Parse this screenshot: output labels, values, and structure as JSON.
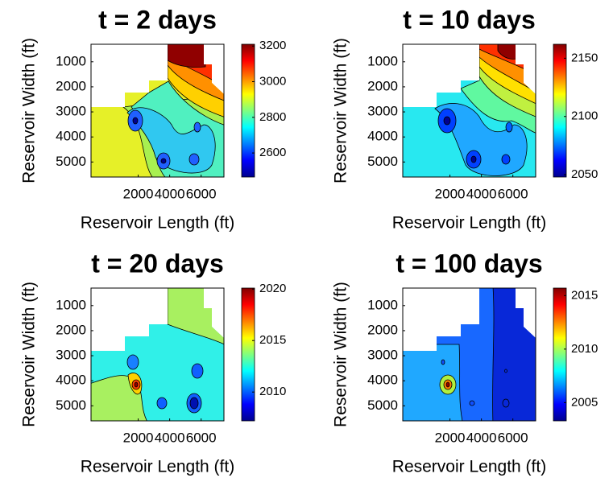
{
  "chart_data": [
    {
      "type": "contour",
      "title": "t = 2 days",
      "xlabel": "Reservoir Length (ft)",
      "ylabel": "Reservoir Width (ft)",
      "xlim": [
        -1000,
        7450
      ],
      "ylim": [
        300,
        5600
      ],
      "y_reversed": true,
      "xticks": [
        2000,
        4000,
        6000
      ],
      "yticks": [
        1000,
        2000,
        3000,
        4000,
        5000
      ],
      "colormap": "jet",
      "clim": [
        2465,
        3210
      ],
      "cticks": [
        2600,
        2800,
        3000,
        3200
      ]
    },
    {
      "type": "contour",
      "title": "t = 10 days",
      "xlabel": "Reservoir Length (ft)",
      "ylabel": "Reservoir Width (ft)",
      "xlim": [
        -1000,
        7450
      ],
      "ylim": [
        300,
        5600
      ],
      "y_reversed": true,
      "xticks": [
        2000,
        4000,
        6000
      ],
      "yticks": [
        1000,
        2000,
        3000,
        4000,
        5000
      ],
      "colormap": "jet",
      "clim": [
        2048,
        2162
      ],
      "cticks": [
        2050,
        2100,
        2150
      ]
    },
    {
      "type": "contour",
      "title": "t = 20 days",
      "xlabel": "Reservoir Length (ft)",
      "ylabel": "Reservoir Width (ft)",
      "xlim": [
        -1000,
        7450
      ],
      "ylim": [
        300,
        5600
      ],
      "y_reversed": true,
      "xticks": [
        2000,
        4000,
        6000
      ],
      "yticks": [
        1000,
        2000,
        3000,
        4000,
        5000
      ],
      "colormap": "jet",
      "clim": [
        2007.2,
        2020.1
      ],
      "cticks": [
        2010,
        2015,
        2020
      ]
    },
    {
      "type": "contour",
      "title": "t = 100 days",
      "xlabel": "Reservoir Length (ft)",
      "ylabel": "Reservoir Width (ft)",
      "xlim": [
        -1000,
        7450
      ],
      "ylim": [
        300,
        5600
      ],
      "y_reversed": true,
      "xticks": [
        2000,
        4000,
        6000
      ],
      "yticks": [
        1000,
        2000,
        3000,
        4000,
        5000
      ],
      "colormap": "jet",
      "clim": [
        2003.3,
        2015.7
      ],
      "cticks": [
        2005,
        2010,
        2015
      ]
    }
  ]
}
